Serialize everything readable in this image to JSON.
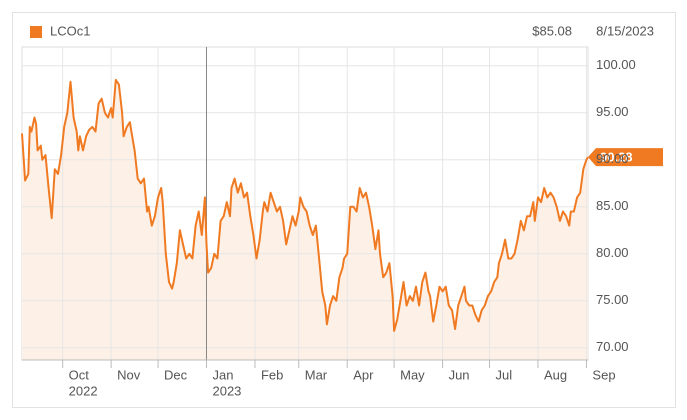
{
  "chart_data": {
    "type": "area",
    "legend": "LCOc1",
    "header_price": "$85.08",
    "header_date": "8/15/2023",
    "series": [
      {
        "name": "LCOc1",
        "color": "#f07a22",
        "fill": "#fdf0e7",
        "x": [
          0,
          2,
          4,
          5,
          6,
          8,
          9,
          10,
          12,
          13,
          15,
          17,
          19,
          21,
          23,
          25,
          27,
          29,
          31,
          33,
          35,
          36,
          37,
          39,
          41,
          43,
          45,
          47,
          49,
          51,
          53,
          55,
          57,
          58,
          60,
          62,
          64,
          65,
          67,
          69,
          70,
          72,
          74,
          76,
          78,
          80,
          81,
          83,
          85,
          87,
          89,
          90,
          92,
          94,
          96,
          97,
          99,
          101,
          103,
          105,
          107,
          109,
          111,
          113,
          115,
          117,
          118,
          119,
          121,
          123,
          125,
          127,
          129,
          131,
          133,
          134,
          136,
          138,
          140,
          142,
          144,
          146,
          148,
          150,
          152,
          154,
          155,
          157,
          159,
          161,
          163,
          165,
          167,
          169,
          171,
          173,
          175,
          177,
          178,
          180,
          182,
          184,
          186,
          188,
          190,
          192,
          194,
          195,
          197,
          199,
          201,
          203,
          205,
          206,
          208,
          210,
          212,
          214,
          216,
          218,
          220,
          222,
          224,
          226,
          228,
          229,
          231,
          233,
          235,
          237,
          238,
          240,
          242,
          244,
          246,
          248,
          250,
          252,
          254,
          256,
          258,
          260,
          261,
          263,
          265,
          267,
          269,
          271,
          273,
          275,
          277,
          279,
          281,
          283,
          284,
          286,
          288,
          290,
          292,
          294,
          296,
          298,
          300,
          302,
          304,
          305,
          307,
          309,
          311,
          313,
          315,
          317,
          319,
          321,
          323,
          325,
          327,
          328,
          330,
          332,
          334,
          336,
          338,
          340,
          342,
          344,
          346,
          348,
          350,
          351,
          353,
          355,
          357,
          359,
          361,
          362
        ],
        "values": [
          92.8,
          87.8,
          88.5,
          93.5,
          93.0,
          94.5,
          93.8,
          91.0,
          91.5,
          90.0,
          90.5,
          87.0,
          83.8,
          89.0,
          88.5,
          90.5,
          93.5,
          95.0,
          98.3,
          94.5,
          93.0,
          91.0,
          92.5,
          91.0,
          92.5,
          93.2,
          93.5,
          93.0,
          96.0,
          96.5,
          95.0,
          94.5,
          95.5,
          94.5,
          98.5,
          98.0,
          95.0,
          92.5,
          93.5,
          94.0,
          93.0,
          91.0,
          88.0,
          87.5,
          88.0,
          84.5,
          85.0,
          83.0,
          84.0,
          86.0,
          87.0,
          85.5,
          80.0,
          77.0,
          76.3,
          77.0,
          79.0,
          82.5,
          81.0,
          79.5,
          80.0,
          79.5,
          83.0,
          84.5,
          82.0,
          86.0,
          81.0,
          78.0,
          78.5,
          80.0,
          79.5,
          83.5,
          84.0,
          85.5,
          84.0,
          87.0,
          88.0,
          86.5,
          87.5,
          86.0,
          86.5,
          84.0,
          82.0,
          79.5,
          81.5,
          84.5,
          85.5,
          84.5,
          86.5,
          85.5,
          84.5,
          85.0,
          83.5,
          81.0,
          82.5,
          84.0,
          83.0,
          84.5,
          86.0,
          85.0,
          84.5,
          83.0,
          82.0,
          83.0,
          79.5,
          76.0,
          74.5,
          72.5,
          74.5,
          75.5,
          75.0,
          77.5,
          78.5,
          79.5,
          80.0,
          85.0,
          85.0,
          84.5,
          87.0,
          86.0,
          86.5,
          85.0,
          83.0,
          80.5,
          82.5,
          80.0,
          77.5,
          78.0,
          79.0,
          75.5,
          71.8,
          73.0,
          75.0,
          77.0,
          74.5,
          75.5,
          75.0,
          76.5,
          74.5,
          77.0,
          78.0,
          76.0,
          75.5,
          72.8,
          74.5,
          76.5,
          76.0,
          76.5,
          74.5,
          74.0,
          72.0,
          74.5,
          75.5,
          76.5,
          75.0,
          74.5,
          74.5,
          73.5,
          72.8,
          74.0,
          74.5,
          75.5,
          76.0,
          77.0,
          77.5,
          79.0,
          80.0,
          81.5,
          79.5,
          79.5,
          80.0,
          81.5,
          83.5,
          82.5,
          84.0,
          84.0,
          85.5,
          83.5,
          86.0,
          85.5,
          87.0,
          86.0,
          86.5,
          86.0,
          85.0,
          83.5,
          84.5,
          84.0,
          83.0,
          84.5,
          84.5,
          86.0,
          86.5,
          89.0,
          90.0,
          90.28
        ]
      }
    ],
    "xlim": [
      0,
      362
    ],
    "xticks": [
      {
        "value": 26,
        "label": "Oct"
      },
      {
        "value": 57,
        "label": "Nov"
      },
      {
        "value": 87,
        "label": "Dec"
      },
      {
        "value": 118,
        "label": "Jan"
      },
      {
        "value": 149,
        "label": "Feb"
      },
      {
        "value": 177,
        "label": "Mar"
      },
      {
        "value": 208,
        "label": "Apr"
      },
      {
        "value": 238,
        "label": "May"
      },
      {
        "value": 269,
        "label": "Jun"
      },
      {
        "value": 299,
        "label": "Jul"
      },
      {
        "value": 330,
        "label": "Aug"
      },
      {
        "value": 361,
        "label": "Sep"
      }
    ],
    "year_labels": [
      {
        "value": 26,
        "label": "2022"
      },
      {
        "value": 118,
        "label": "2023"
      }
    ],
    "ylim": [
      68.7,
      102
    ],
    "yticks": [
      {
        "value": 70,
        "label": "70.00"
      },
      {
        "value": 75,
        "label": "75.00"
      },
      {
        "value": 80,
        "label": "80.00"
      },
      {
        "value": 85,
        "label": "85.00"
      },
      {
        "value": 90,
        "label": "90.00"
      },
      {
        "value": 95,
        "label": "95.00"
      },
      {
        "value": 100,
        "label": "100.00"
      }
    ],
    "grid": true
  }
}
